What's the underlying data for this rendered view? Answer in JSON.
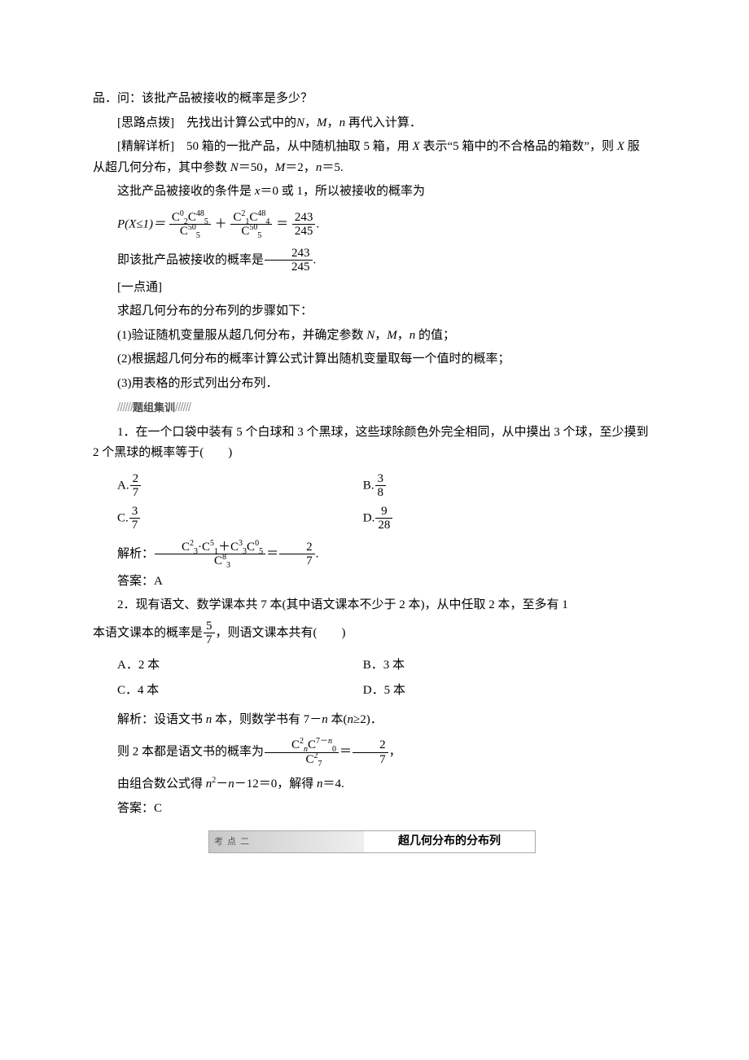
{
  "top_fragment": "品．问：该批产品被接收的概率是多少？",
  "hint": {
    "label": "[思路点拨]",
    "text": "　先找出计算公式中的<i>N</i>，<i>M</i>，<i>n</i> 再代入计算．"
  },
  "solution": {
    "label": "[精解详析]",
    "p1": "　50 箱的一批产品，从中随机抽取 5 箱，用 <i>X</i> 表示“5 箱中的不合格品的箱数”，则 <i>X</i> 服从超几何分布，其中参数 <i>N</i>＝50，<i>M</i>＝2，<i>n</i>＝5.",
    "p2": "这批产品被接收的条件是 <i>x</i>＝0 或 1，所以被接收的概率为",
    "formula_prefix": "P(X≤1)＝",
    "frac1_num": "C<sup class=\"sc\">0</sup><sub class=\"sc\">2</sub>C<sup class=\"sc\">48</sup><sub class=\"sc\">5</sub>",
    "frac1_den": "C<sup class=\"sc\">50</sup><sub class=\"sc\">5</sub>",
    "plus": "＋",
    "frac2_num": "C<sup class=\"sc\">2</sup><sub class=\"sc\">1</sub>C<sup class=\"sc\">48</sup><sub class=\"sc\">4</sub>",
    "frac2_den": "C<sup class=\"sc\">50</sup><sub class=\"sc\">5</sub>",
    "eq": "＝",
    "result_num": "243",
    "result_den": "245",
    "tail": ".",
    "conclusion_pre": "即该批产品被接收的概率是",
    "conclusion_num": "243",
    "conclusion_den": "245",
    "conclusion_tail": "."
  },
  "note": {
    "label": "[一点通]",
    "lead": "求超几何分布的分布列的步骤如下：",
    "s1": "(1)验证随机变量服从超几何分布，并确定参数 <i>N</i>，<i>M</i>，<i>n</i> 的值；",
    "s2": "(2)根据超几何分布的概率计算公式计算出随机变量取每一个值时的概率；",
    "s3": "(3)用表格的形式列出分布列．"
  },
  "drill_label_slashes": "//////",
  "drill_label_text": "题组集训",
  "q1": {
    "stem_a": "1．在一个口袋中装有 5 个白球和 3 个黑球，这些球除颜色外完全相同，从中摸出 3 个球，至少摸到 2 个黑球的概率等于(　　)",
    "optA_pre": "A.",
    "optA_num": "2",
    "optA_den": "7",
    "optB_pre": "B.",
    "optB_num": "3",
    "optB_den": "8",
    "optC_pre": "C.",
    "optC_num": "3",
    "optC_den": "7",
    "optD_pre": "D.",
    "optD_num": "9",
    "optD_den": "28",
    "expl_pre": "解析：",
    "expl_num": "C<sup class=\"sc\">2</sup><sub class=\"sc\">3</sub>·C<sup class=\"sc\">5</sup><sub class=\"sc\">1</sub>＋C<sup class=\"sc\">3</sup><sub class=\"sc\">3</sub>C<sup class=\"sc\">0</sup><sub class=\"sc\">5</sub>",
    "expl_den": "C<sup class=\"sc\">8</sup><sub class=\"sc\">3</sub>",
    "expl_eq": "＝",
    "expl_rnum": "2",
    "expl_rden": "7",
    "expl_tail": ".",
    "ans": "答案：A"
  },
  "q2": {
    "stem_a": "2．现有语文、数学课本共 7 本(其中语文课本不少于 2 本)，从中任取 2 本，至多有 1",
    "stem_b_pre": "本语文课本的概率是",
    "stem_b_num": "5",
    "stem_b_den": "7",
    "stem_b_post": "，则语文课本共有(　　)",
    "optA": "A．2 本",
    "optB": "B．3 本",
    "optC": "C．4 本",
    "optD": "D．5 本",
    "expl1": "解析：设语文书 <i>n</i> 本，则数学书有 7－<i>n</i> 本(<i>n</i>≥2)．",
    "expl2_pre": "则 2 本都是语文书的概率为",
    "expl2_num": "C<sup class=\"sc\">2</sup><sub class=\"sc ital\">n</sub>C<sup class=\"sc\">7－<i>n</i></sup><sub class=\"sc\">0</sub>",
    "expl2_den": "C<sup class=\"sc\">2</sup><sub class=\"sc\">7</sub>",
    "expl2_eq": "＝",
    "expl2_rnum": "2",
    "expl2_rden": "7",
    "expl2_tail": "，",
    "expl3": "由组合数公式得 <i>n</i><sup class=\"sc\">2</sup>－<i>n</i>－12＝0，解得 <i>n</i>＝4.",
    "ans": "答案：C"
  },
  "section": {
    "left": "考 点 二",
    "right": "超几何分布的分布列"
  }
}
